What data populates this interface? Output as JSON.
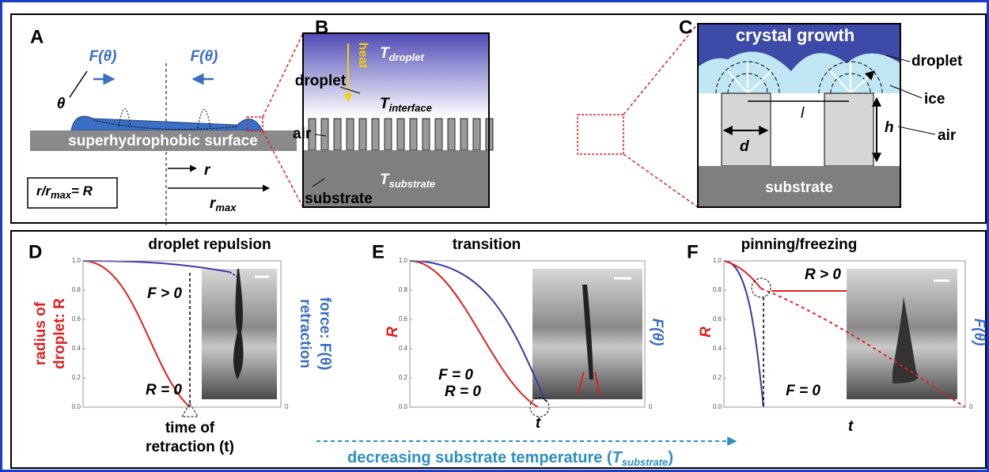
{
  "panels": {
    "a": {
      "label": "A",
      "force_left": "F(θ)",
      "force_right": "F(θ)",
      "angle": "θ",
      "surface": "superhydrophobic surface",
      "radius": "r",
      "radius_max": {
        "main": "r",
        "sub": "max"
      },
      "ratio": {
        "main": "r/r",
        "sub": "max",
        "tail": "= R"
      }
    },
    "b": {
      "label": "B",
      "t_droplet": {
        "main": "T",
        "sub": "droplet"
      },
      "heat": "heat",
      "droplet": "droplet",
      "t_interface": {
        "main": "T",
        "sub": "interface"
      },
      "air": "air",
      "t_substrate": {
        "main": "T",
        "sub": "substrate"
      },
      "substrate": "substrate"
    },
    "c": {
      "label": "C",
      "crystal_growth": "crystal growth",
      "droplet": "droplet",
      "ice": "ice",
      "air": "air",
      "spacing": "l",
      "diameter": "d",
      "height": "h",
      "substrate": "substrate"
    },
    "d": {
      "label": "D",
      "title": "droplet repulsion",
      "yticks": [
        "0.0",
        "0.2",
        "0.4",
        "0.6",
        "0.8",
        "1.0"
      ],
      "right_tick": "0",
      "y_label": [
        "radius of",
        "droplet: R"
      ],
      "y2_label": [
        "retraction",
        "force: F(θ)"
      ],
      "force_note": "F > 0",
      "radius_note": "R = 0",
      "x_label": [
        "time of",
        "retraction (t)"
      ]
    },
    "e": {
      "label": "E",
      "title": "transition",
      "yticks": [
        "0.0",
        "0.2",
        "0.4",
        "0.6",
        "0.8",
        "1.0"
      ],
      "right_tick": "0",
      "y_label": "R",
      "y2_label": "F(θ)",
      "force_note": "F = 0",
      "radius_note": "R = 0",
      "x_label": "t"
    },
    "f": {
      "label": "F",
      "title": "pinning/freezing",
      "yticks": [
        "0.0",
        "0.2",
        "0.4",
        "0.6",
        "0.8",
        "1.0"
      ],
      "right_tick": "0",
      "y_label": "R",
      "y2_label": "F(θ)",
      "force_note": "F = 0",
      "radius_note": "R > 0",
      "x_label": "t"
    }
  },
  "footer": {
    "before": "decreasing substrate temperature (",
    "symbol": "T",
    "sub": "substrate",
    "after": ")"
  }
}
